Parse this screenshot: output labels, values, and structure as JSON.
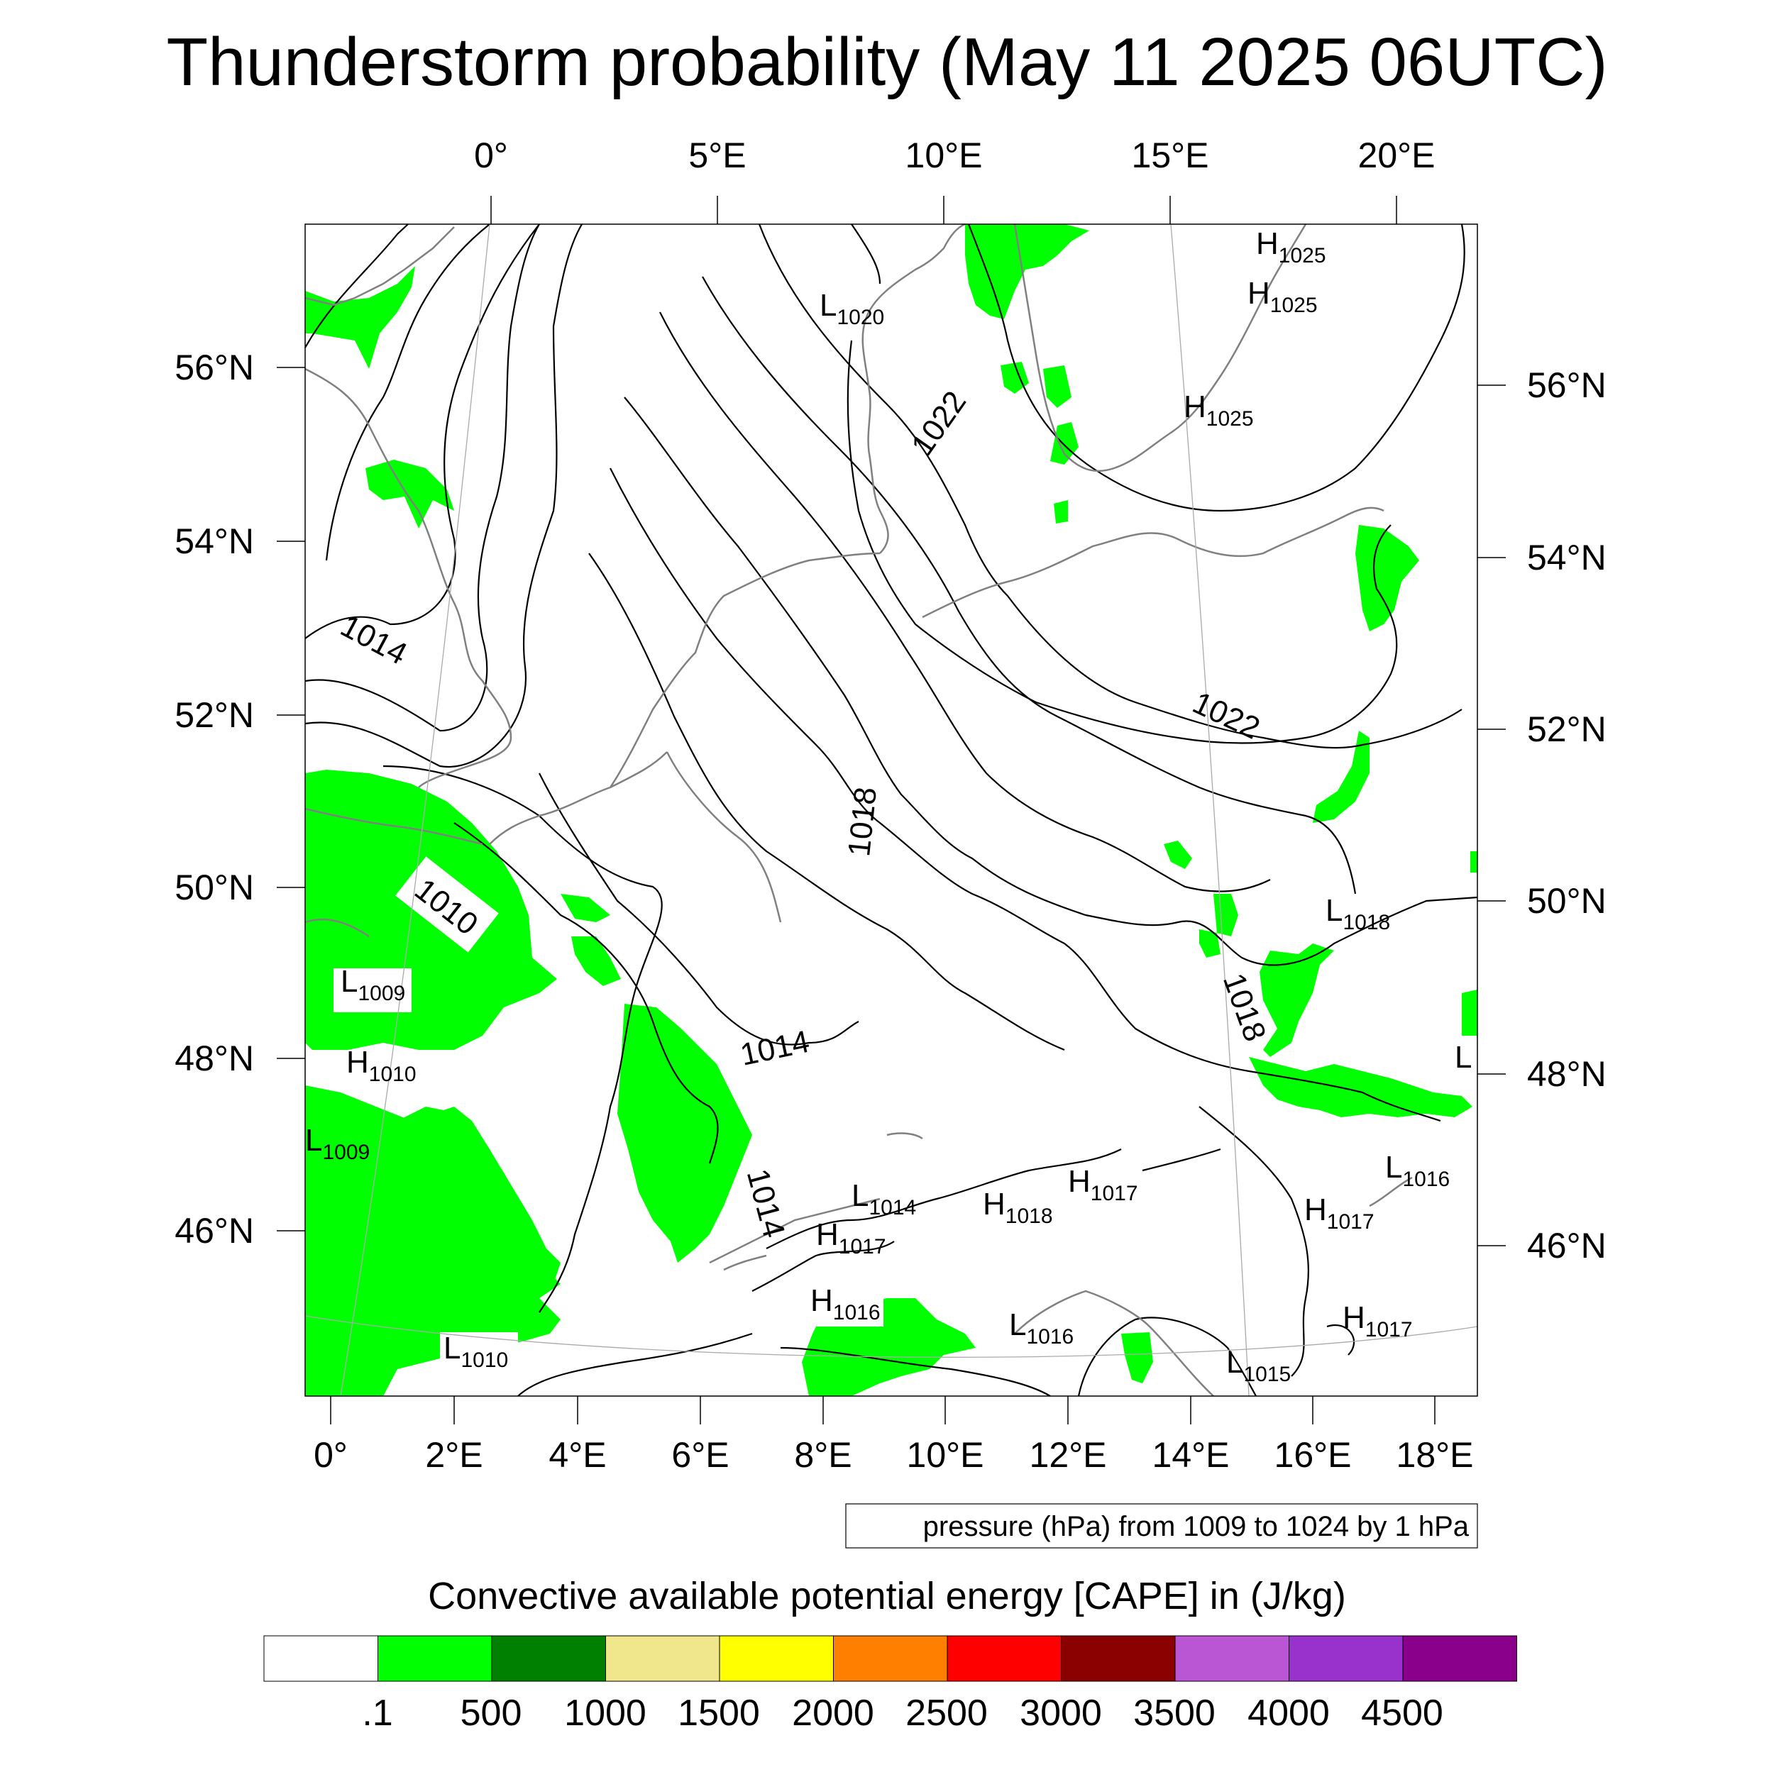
{
  "title": "Thunderstorm probability (May 11 2025 06UTC)",
  "top_lon_labels": [
    "0°",
    "5°E",
    "10°E",
    "15°E",
    "20°E"
  ],
  "bottom_lon_labels": [
    "0°",
    "2°E",
    "4°E",
    "6°E",
    "8°E",
    "10°E",
    "12°E",
    "14°E",
    "16°E",
    "18°E"
  ],
  "left_lat_labels": [
    "56°N",
    "54°N",
    "52°N",
    "50°N",
    "48°N",
    "46°N"
  ],
  "right_lat_labels": [
    "56°N",
    "54°N",
    "52°N",
    "50°N",
    "48°N",
    "46°N"
  ],
  "contour_labels": [
    "1014",
    "1010",
    "1014",
    "1014",
    "1018",
    "1022",
    "1022",
    "1018"
  ],
  "pressure_centers": [
    {
      "type": "H",
      "value": "1025"
    },
    {
      "type": "H",
      "value": "1025"
    },
    {
      "type": "L",
      "value": "1020"
    },
    {
      "type": "H",
      "value": "1025"
    },
    {
      "type": "L",
      "value": "1009"
    },
    {
      "type": "H",
      "value": "1010"
    },
    {
      "type": "L",
      "value": "1009"
    },
    {
      "type": "L",
      "value": "1018"
    },
    {
      "type": "L",
      "value": "1016"
    },
    {
      "type": "H",
      "value": "1017"
    },
    {
      "type": "H",
      "value": "1017"
    },
    {
      "type": "L",
      "value": "1014"
    },
    {
      "type": "H",
      "value": "1018"
    },
    {
      "type": "H",
      "value": "1017"
    },
    {
      "type": "H",
      "value": "1016"
    },
    {
      "type": "L",
      "value": "1016"
    },
    {
      "type": "L",
      "value": "1010"
    },
    {
      "type": "L",
      "value": "1015"
    },
    {
      "type": "H",
      "value": "1017"
    },
    {
      "type": "L",
      "value": ""
    }
  ],
  "contour_note": "pressure (hPa) from 1009 to 1024 by 1 hPa",
  "legend": {
    "title": "Convective available potential energy [CAPE] in (J/kg)",
    "colors": [
      "#ffffff",
      "#00ff00",
      "#008000",
      "#f0e68c",
      "#ffff00",
      "#ff8000",
      "#ff0000",
      "#8b0000",
      "#ba55d3",
      "#9932cc",
      "#8b008b"
    ],
    "labels": [
      ".1",
      "500",
      "1000",
      "1500",
      "2000",
      "2500",
      "3000",
      "3500",
      "4000",
      "4500"
    ]
  },
  "colors": {
    "cape_fill": "#00ff00",
    "coastline": "#808080",
    "isobar": "#000000"
  }
}
